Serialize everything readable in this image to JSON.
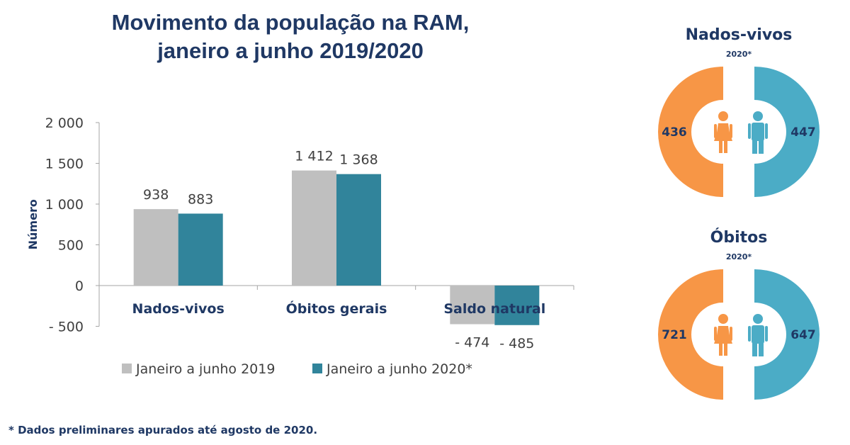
{
  "title_line1": "Movimento da população na RAM,",
  "title_line2": "janeiro a junho 2019/2020",
  "footnote": "* Dados preliminares apurados até agosto de 2020.",
  "colors": {
    "series_2019": "#bfbfbf",
    "series_2020": "#31849b",
    "female": "#f79646",
    "male": "#4bacc6",
    "text_dark": "#1f3864"
  },
  "chart_data": [
    {
      "type": "bar",
      "title": "Movimento da população na RAM, janeiro a junho 2019/2020",
      "categories": [
        "Nados-vivos",
        "Óbitos gerais",
        "Saldo natural"
      ],
      "series": [
        {
          "name": "Janeiro a junho 2019",
          "values": [
            938,
            1412,
            -474
          ],
          "labels": [
            "938",
            "1 412",
            "- 474"
          ]
        },
        {
          "name": "Janeiro a junho 2020*",
          "values": [
            883,
            1368,
            -485
          ],
          "labels": [
            "883",
            "1 368",
            "- 485"
          ]
        }
      ],
      "ylabel": "Número",
      "xlabel": "",
      "ylim": [
        -500,
        2000
      ],
      "yticks": [
        2000,
        1500,
        1000,
        500,
        0,
        -500
      ],
      "ytick_labels": [
        "2 000",
        "1 500",
        "1 000",
        "500",
        "0",
        "- 500"
      ],
      "grid": false,
      "legend": "bottom"
    },
    {
      "type": "pie",
      "title": "Nados-vivos",
      "subtitle": "2020*",
      "slices": [
        {
          "category": "female",
          "value": 436,
          "label": "436"
        },
        {
          "category": "male",
          "value": 447,
          "label": "447"
        }
      ]
    },
    {
      "type": "pie",
      "title": "Óbitos",
      "subtitle": "2020*",
      "slices": [
        {
          "category": "female",
          "value": 721,
          "label": "721"
        },
        {
          "category": "male",
          "value": 647,
          "label": "647"
        }
      ]
    }
  ]
}
